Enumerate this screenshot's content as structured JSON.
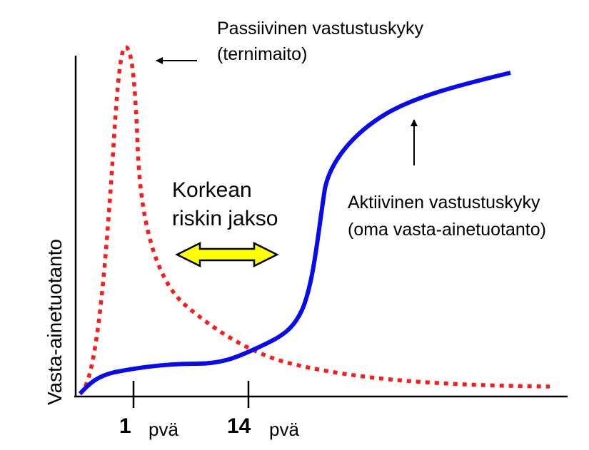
{
  "labels": {
    "y_axis": "Vasta-ainetuotanto",
    "passive_line1": "Passiivinen vastustuskyky",
    "passive_line2": "(ternimaito)",
    "active_line1": "Aktiivinen vastustuskyky",
    "active_line2": "(oma vasta-ainetuotanto)",
    "risk_line1": "Korkean",
    "risk_line2": "riskin jakso"
  },
  "ticks": [
    {
      "number": "1",
      "unit": "pvä"
    },
    {
      "number": "14",
      "unit": "pvä"
    }
  ],
  "colors": {
    "passive": "#ff1a1a",
    "active": "#0a0aee",
    "arrow_fill": "#ffff00",
    "axis": "#000000"
  }
}
